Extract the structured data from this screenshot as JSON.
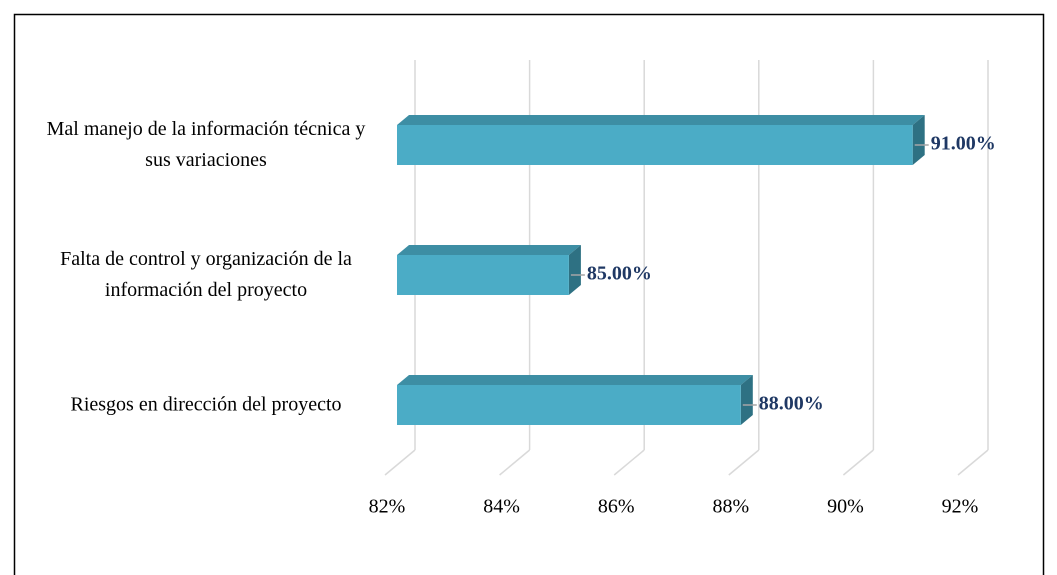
{
  "chart_data": {
    "type": "bar3d_horizontal",
    "categories": [
      "Mal manejo de la información técnica y sus variaciones",
      "Falta de control y organización de la información del proyecto",
      "Riesgos en dirección del proyecto"
    ],
    "values": [
      91,
      85,
      88
    ],
    "value_labels": [
      "91.00%",
      "85.00%",
      "88.00%"
    ],
    "color": "#4bacc6",
    "xlim": [
      82,
      92
    ],
    "xticks": [
      {
        "value": 82,
        "label": "82%"
      },
      {
        "value": 84,
        "label": "84%"
      },
      {
        "value": 86,
        "label": "86%"
      },
      {
        "value": 88,
        "label": "88%"
      },
      {
        "value": 90,
        "label": "90%"
      },
      {
        "value": 92,
        "label": "92%"
      }
    ],
    "grid": true
  }
}
